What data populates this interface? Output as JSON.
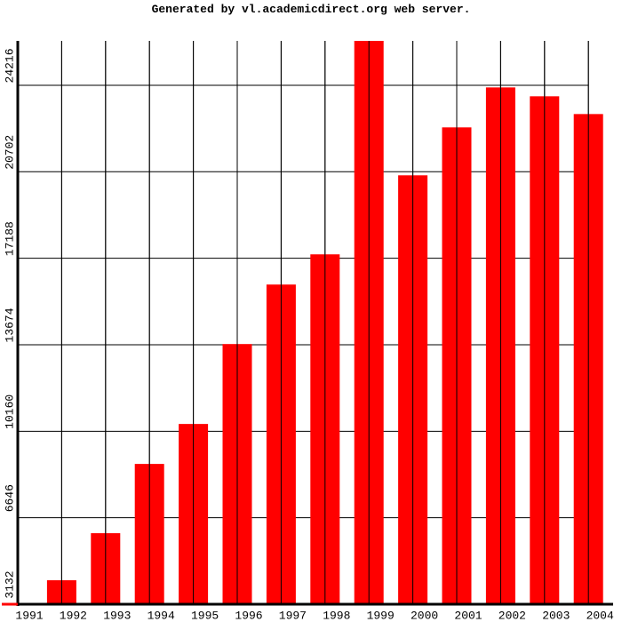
{
  "chart_data": {
    "type": "bar",
    "title": "Generated by vl.academicdirect.org web server.",
    "categories": [
      "1991",
      "1992",
      "1993",
      "1994",
      "1995",
      "1996",
      "1997",
      "1998",
      "1999",
      "2000",
      "2001",
      "2002",
      "2003",
      "2004"
    ],
    "values": [
      null,
      4106,
      6018,
      8832,
      10456,
      13703,
      16120,
      17347,
      26020,
      20558,
      22506,
      24129,
      23769,
      23047
    ],
    "color": "#ff0000",
    "ylim": [
      3132,
      26020
    ],
    "yticks": [
      3132,
      6646,
      10160,
      13674,
      17188,
      20702,
      24216
    ],
    "grid": true
  }
}
